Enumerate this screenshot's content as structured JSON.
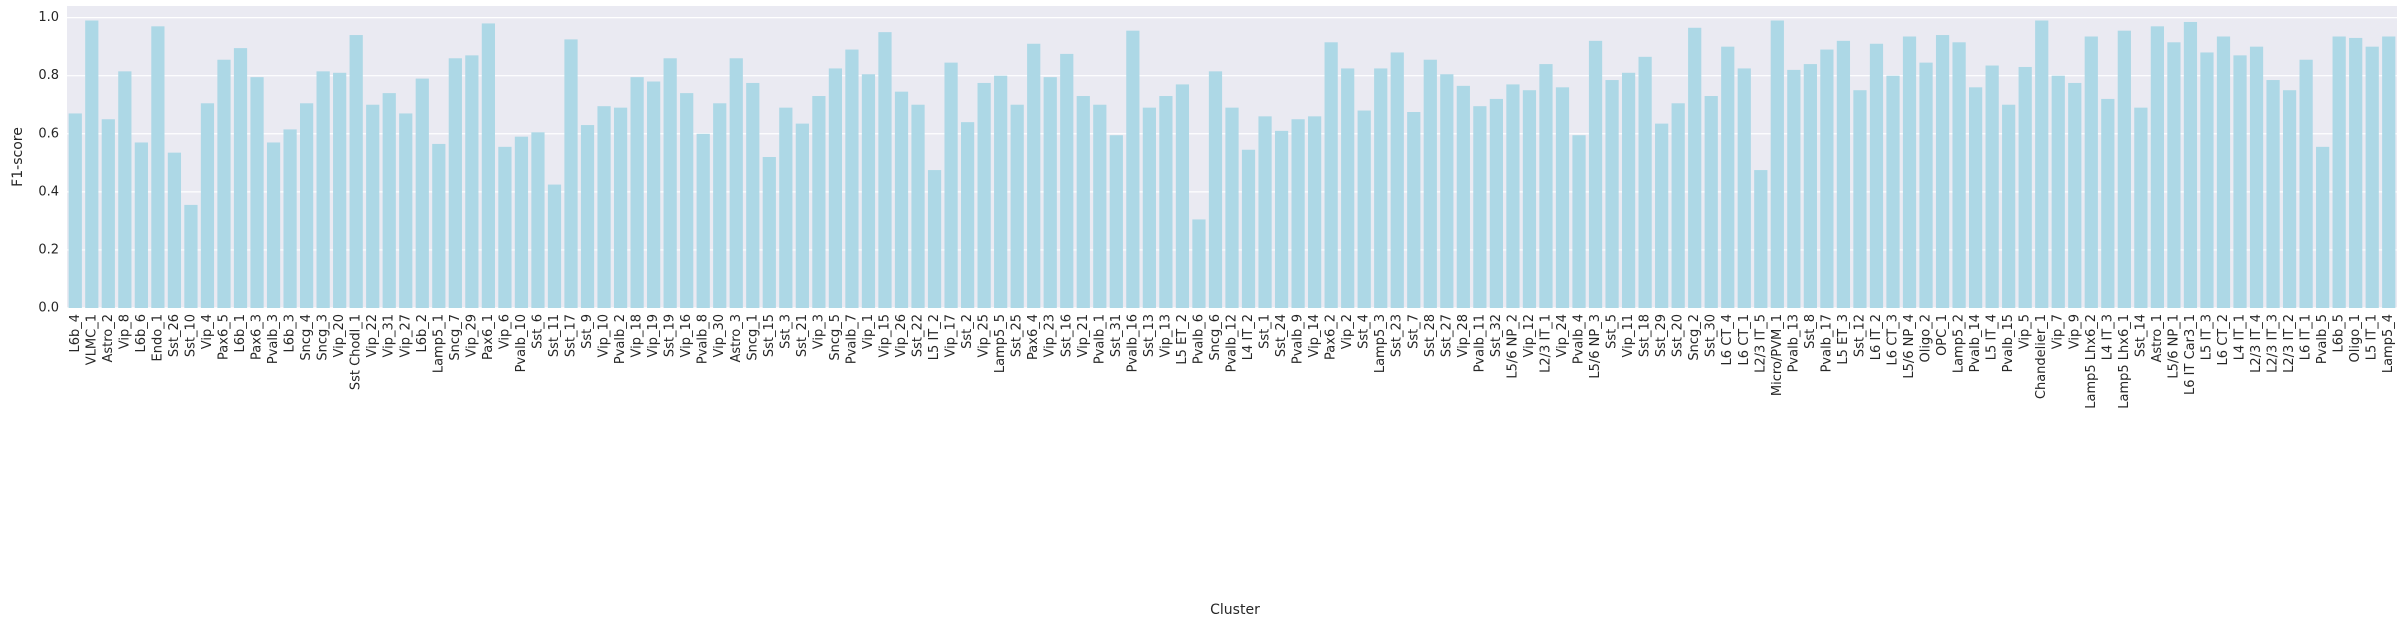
{
  "chart_data": {
    "type": "bar",
    "x_label": "Cluster",
    "y_label": "F1-score",
    "color": "#add8e6",
    "grid": true,
    "ylim": [
      0,
      1.04
    ],
    "yticks": [
      {
        "value": 0,
        "label": "0.0"
      },
      0.2,
      0.4,
      0.6,
      0.8,
      {
        "value": 1,
        "label": "1.0"
      }
    ],
    "categories": [
      "L6b_4",
      "VLMC_1",
      "Astro_2",
      "Vip_8",
      "L6b_6",
      "Endo_1",
      "Sst_26",
      "Sst_10",
      "Vip_4",
      "Pax6_5",
      "L6b_1",
      "Pax6_3",
      "Pvalb_3",
      "L6b_3",
      "Sncg_4",
      "Sncg_3",
      "Vip_20",
      "Sst Chodl_1",
      "Vip_22",
      "Vip_31",
      "Vip_27",
      "L6b_2",
      "Lamp5_1",
      "Sncg_7",
      "Vip_29",
      "Pax6_1",
      "Vip_6",
      "Pvalb_10",
      "Sst_6",
      "Sst_11",
      "Sst_17",
      "Sst_9",
      "Vip_10",
      "Pvalb_2",
      "Vip_18",
      "Vip_19",
      "Sst_19",
      "Vip_16",
      "Pvalb_8",
      "Vip_30",
      "Astro_3",
      "Sncg_1",
      "Sst_15",
      "Sst_3",
      "Sst_21",
      "Vip_3",
      "Sncg_5",
      "Pvalb_7",
      "Vip_1",
      "Vip_15",
      "Vip_26",
      "Sst_22",
      "L5 IT_2",
      "Vip_17",
      "Sst_2",
      "Vip_25",
      "Lamp5_5",
      "Sst_25",
      "Pax6_4",
      "Vip_23",
      "Sst_16",
      "Vip_21",
      "Pvalb_1",
      "Sst_31",
      "Pvalb_16",
      "Sst_13",
      "Vip_13",
      "L5 ET_2",
      "Pvalb_6",
      "Sncg_6",
      "Pvalb_12",
      "L4 IT_2",
      "Sst_1",
      "Sst_24",
      "Pvalb_9",
      "Vip_14",
      "Pax6_2",
      "Vip_2",
      "Sst_4",
      "Lamp5_3",
      "Sst_23",
      "Sst_7",
      "Sst_28",
      "Sst_27",
      "Vip_28",
      "Pvalb_11",
      "Sst_32",
      "L5/6 NP_2",
      "Vip_12",
      "L2/3 IT_1",
      "Vip_24",
      "Pvalb_4",
      "L5/6 NP_3",
      "Sst_5",
      "Vip_11",
      "Sst_18",
      "Sst_29",
      "Sst_20",
      "Sncg_2",
      "Sst_30",
      "L6 CT_4",
      "L6 CT_1",
      "L2/3 IT_5",
      "Micro/PVM_1",
      "Pvalb_13",
      "Sst_8",
      "Pvalb_17",
      "L5 ET_3",
      "Sst_12",
      "L6 IT_2",
      "L6 CT_3",
      "L5/6 NP_4",
      "Oligo_2",
      "OPC_1",
      "Lamp5_2",
      "Pvalb_14",
      "L5 IT_4",
      "Pvalb_15",
      "Vip_5",
      "Chandelier_1",
      "Vip_7",
      "Vip_9",
      "Lamp5 Lhx6_2",
      "L4 IT_3",
      "Lamp5 Lhx6_1",
      "Sst_14",
      "Astro_1",
      "L5/6 NP_1",
      "L6 IT Car3_1",
      "L5 IT_3",
      "L6 CT_2",
      "L4 IT_1",
      "L2/3 IT_4",
      "L2/3 IT_3",
      "L2/3 IT_2",
      "L6 IT_1",
      "Pvalb_5",
      "L6b_5",
      "Oligo_1",
      "L5 IT_1",
      "Lamp5_4"
    ],
    "values": [
      0.67,
      0.99,
      0.65,
      0.815,
      0.57,
      0.97,
      0.535,
      0.355,
      0.705,
      0.855,
      0.895,
      0.795,
      0.57,
      0.615,
      0.705,
      0.815,
      0.81,
      0.94,
      0.7,
      0.74,
      0.67,
      0.79,
      0.565,
      0.86,
      0.87,
      0.98,
      0.555,
      0.59,
      0.605,
      0.425,
      0.925,
      0.63,
      0.695,
      0.69,
      0.795,
      0.78,
      0.86,
      0.74,
      0.6,
      0.705,
      0.86,
      0.775,
      0.52,
      0.69,
      0.635,
      0.73,
      0.825,
      0.89,
      0.805,
      0.95,
      0.745,
      0.7,
      0.475,
      0.845,
      0.64,
      0.775,
      0.8,
      0.7,
      0.91,
      0.795,
      0.875,
      0.73,
      0.7,
      0.595,
      0.955,
      0.69,
      0.73,
      0.77,
      0.305,
      0.815,
      0.69,
      0.545,
      0.66,
      0.61,
      0.65,
      0.66,
      0.915,
      0.825,
      0.68,
      0.825,
      0.88,
      0.675,
      0.855,
      0.805,
      0.765,
      0.695,
      0.72,
      0.77,
      0.75,
      0.84,
      0.76,
      0.595,
      0.92,
      0.785,
      0.81,
      0.865,
      0.635,
      0.705,
      0.965,
      0.73,
      0.9,
      0.825,
      0.475,
      0.99,
      0.82,
      0.84,
      0.89,
      0.92,
      0.75,
      0.91,
      0.8,
      0.935,
      0.845,
      0.94,
      0.915,
      0.76,
      0.835,
      0.7,
      0.83,
      0.99,
      0.8,
      0.775,
      0.935,
      0.72,
      0.955,
      0.69,
      0.97,
      0.915,
      0.985,
      0.88,
      0.935,
      0.87,
      0.9,
      0.785,
      0.75,
      0.855,
      0.555,
      0.935,
      0.93,
      0.9,
      0.935
    ]
  }
}
